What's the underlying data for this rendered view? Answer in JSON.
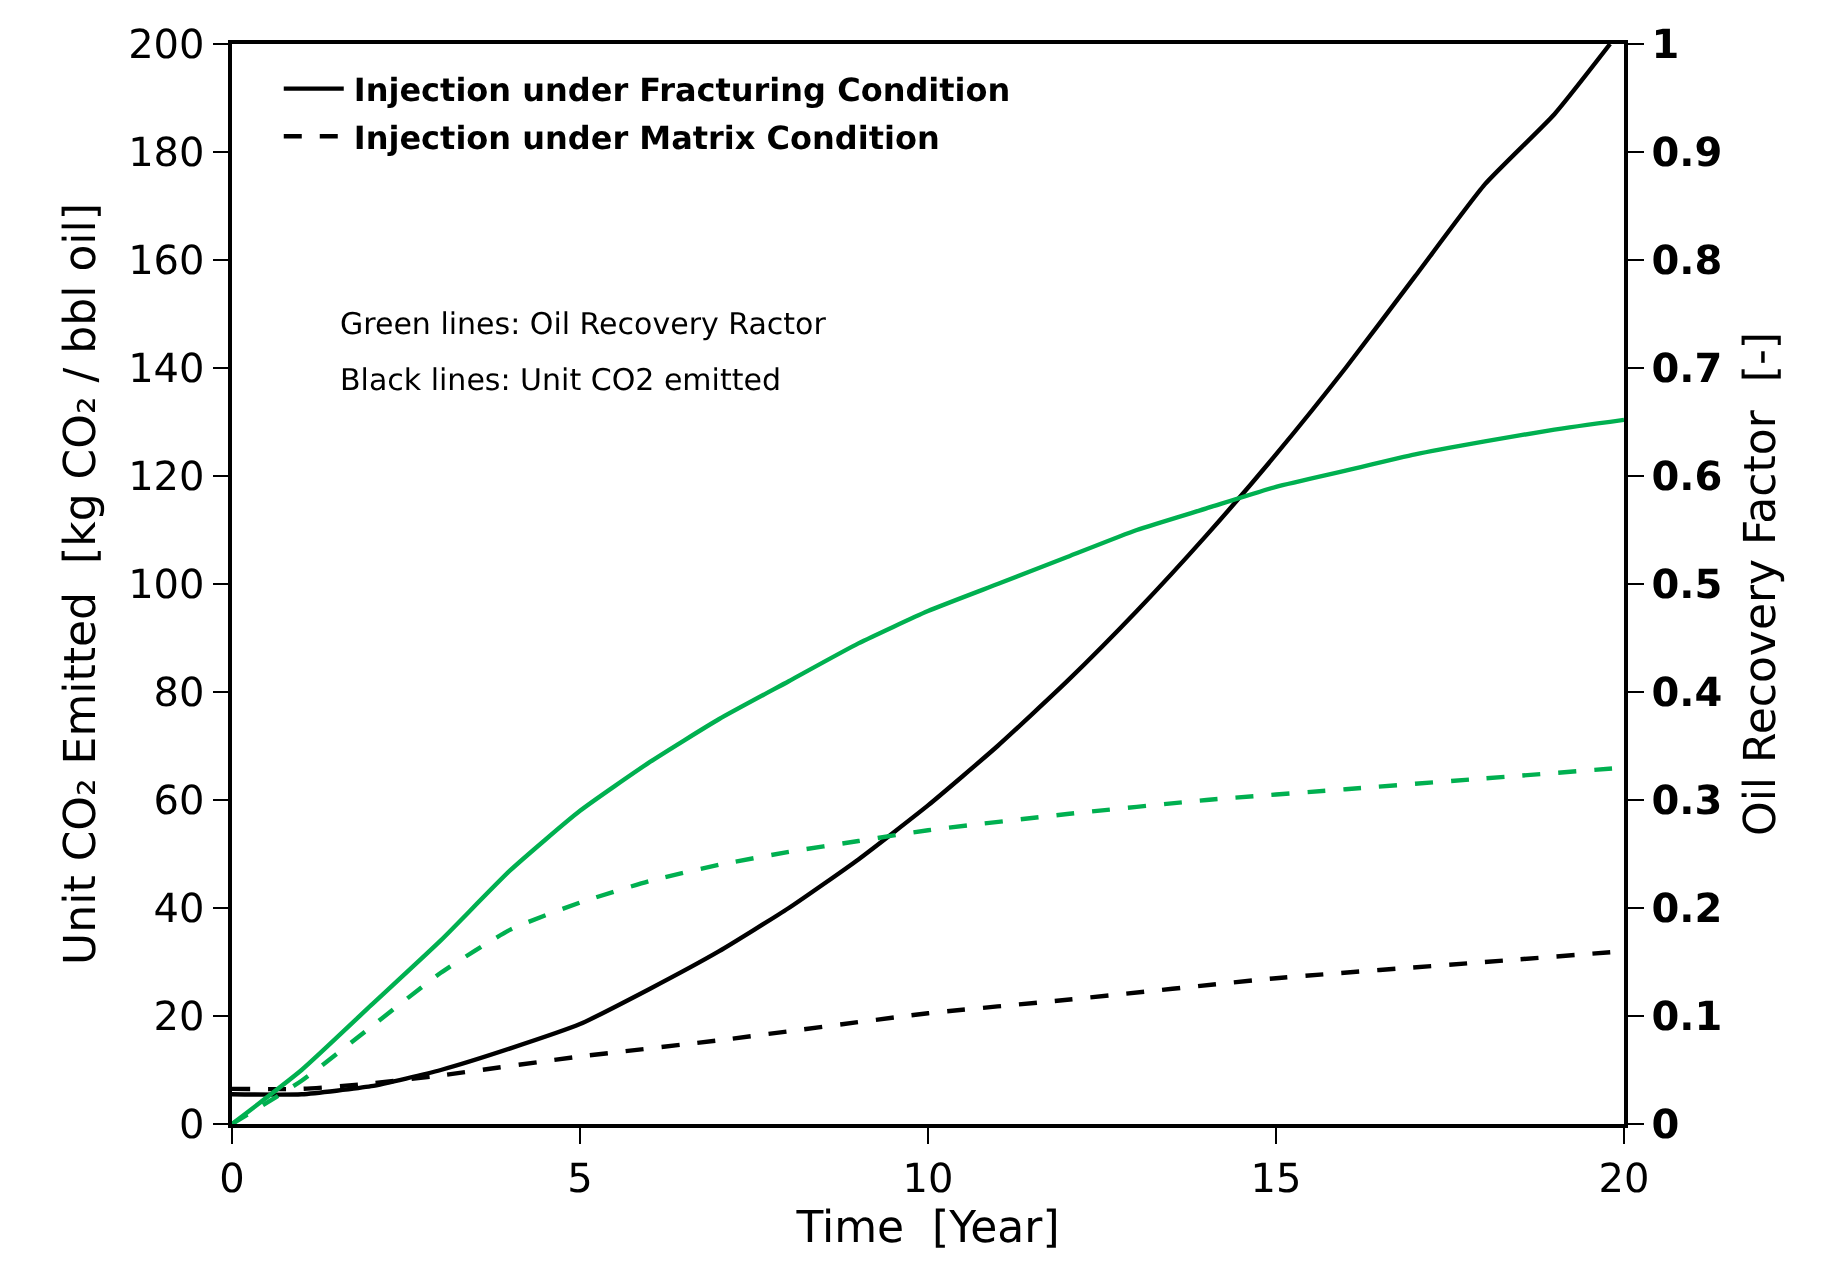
{
  "chart_data": {
    "type": "line",
    "xlabel": "Time  [Year]",
    "ylabel": "Unit CO₂ Emitted  [kg CO₂ / bbl oil]",
    "y2label": "Oil Recovery Factor  [-]",
    "xlim": [
      0,
      20
    ],
    "xticks": [
      0,
      5,
      10,
      15,
      20
    ],
    "ylim": [
      0,
      200
    ],
    "yticks": [
      0,
      20,
      40,
      60,
      80,
      100,
      120,
      140,
      160,
      180,
      200
    ],
    "y2lim": [
      0,
      1
    ],
    "y2ticks": [
      0,
      0.1,
      0.2,
      0.3,
      0.4,
      0.5,
      0.6,
      0.7,
      0.8,
      0.9,
      1
    ],
    "grid": false,
    "legend": "top left",
    "marker": "none",
    "annotations": [
      "Green lines: Oil Recovery Ractor",
      "Black lines: Unit CO2 emitted"
    ],
    "series": [
      {
        "name": "Injection under Fracturing Condition",
        "color": "#000000",
        "line_style": "solid",
        "x": [
          0,
          1,
          2,
          3,
          4,
          5,
          6,
          7,
          8,
          9,
          10,
          11,
          12,
          13,
          14,
          15,
          16,
          17,
          18,
          19,
          19.8
        ],
        "values": [
          5.5,
          5.5,
          7,
          10,
          14,
          18.5,
          25,
          32,
          40,
          49,
          59,
          70,
          82,
          95,
          109,
          124,
          140,
          157,
          174,
          187,
          200
        ]
      },
      {
        "name": "Injection under Matrix Condition",
        "color": "#000000",
        "line_style": "dashed",
        "x": [
          0,
          1,
          2,
          3,
          5,
          7,
          10,
          12,
          15,
          18,
          20
        ],
        "values": [
          6.5,
          6.5,
          7.5,
          9,
          12.5,
          15.5,
          20.5,
          23,
          27,
          30,
          32
        ]
      },
      {
        "color": "#00b050",
        "line_style": "solid",
        "axis": "y2",
        "x": [
          0,
          1,
          2,
          3,
          4,
          5,
          6,
          7,
          8,
          9,
          10,
          11,
          12,
          13,
          14,
          15,
          16,
          17,
          18,
          19,
          20
        ],
        "values": [
          0,
          0.05,
          0.11,
          0.17,
          0.235,
          0.29,
          0.335,
          0.375,
          0.41,
          0.445,
          0.475,
          0.5,
          0.525,
          0.55,
          0.57,
          0.59,
          0.605,
          0.62,
          0.632,
          0.643,
          0.652
        ]
      },
      {
        "color": "#00b050",
        "line_style": "dashed",
        "axis": "y2",
        "x": [
          0,
          1,
          2,
          3,
          4,
          5,
          6,
          7,
          8,
          9,
          10,
          12,
          14,
          16,
          18,
          20
        ],
        "values": [
          0,
          0.04,
          0.09,
          0.14,
          0.18,
          0.205,
          0.225,
          0.24,
          0.252,
          0.262,
          0.272,
          0.287,
          0.3,
          0.31,
          0.32,
          0.33
        ]
      }
    ]
  }
}
